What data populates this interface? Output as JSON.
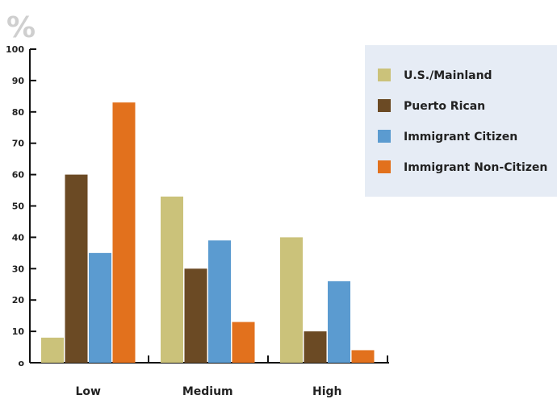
{
  "chart_data": {
    "type": "bar",
    "unit_label": "%",
    "categories": [
      "Low",
      "Medium",
      "High"
    ],
    "series": [
      {
        "name": "U.S./Mainland",
        "color": "#cbc27a",
        "values": [
          8,
          53,
          40
        ]
      },
      {
        "name": "Puerto Rican",
        "color": "#6b4a24",
        "values": [
          60,
          30,
          10
        ]
      },
      {
        "name": "Immigrant Citizen",
        "color": "#5b9bd0",
        "values": [
          35,
          39,
          26
        ]
      },
      {
        "name": "Immigrant Non-Citizen",
        "color": "#e2711d",
        "values": [
          83,
          13,
          4
        ]
      }
    ],
    "yticks": [
      "o",
      "10",
      "20",
      "30",
      "40",
      "50",
      "60",
      "70",
      "80",
      "90",
      "100"
    ],
    "ylim": [
      0,
      100
    ],
    "legend_position": "top-right",
    "legend_background": "#e6ecf5",
    "grid": false
  }
}
